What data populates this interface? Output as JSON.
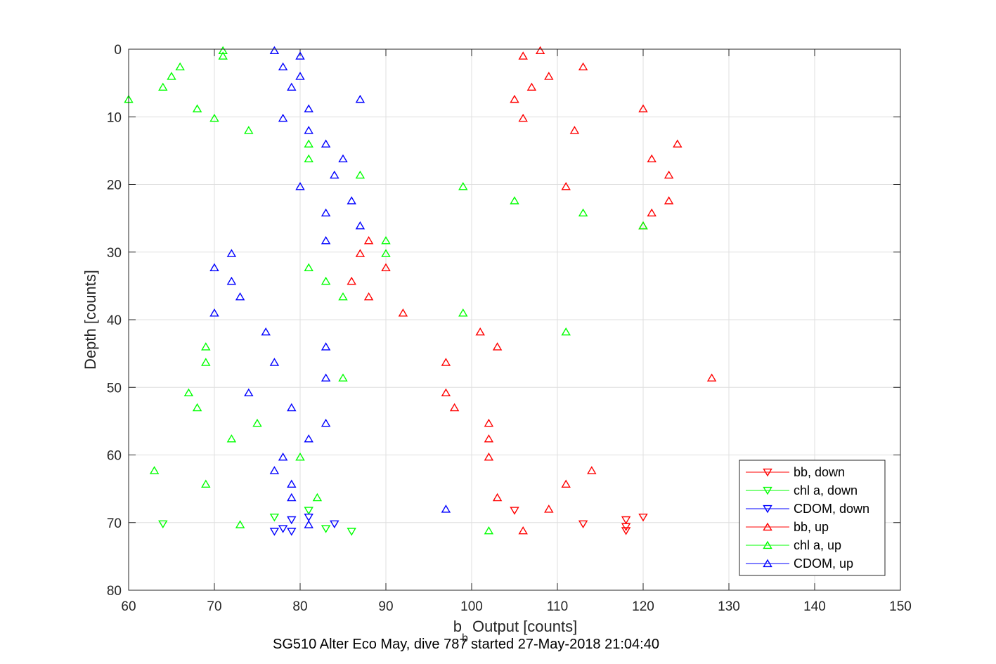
{
  "chart_data": {
    "type": "scatter",
    "xlabel_main": "b",
    "xlabel_sub": "b",
    "xlabel_rest": " Output [counts]",
    "ylabel": "Depth [counts]",
    "caption": "SG510 Alter Eco May, dive 787 started 27-May-2018 21:04:40",
    "xlim": [
      60,
      150
    ],
    "ylim": [
      0,
      80
    ],
    "y_reversed": true,
    "grid": true,
    "legend_position": "bottom-right",
    "x_ticks": [
      "60",
      "70",
      "80",
      "90",
      "100",
      "110",
      "120",
      "130",
      "140",
      "150"
    ],
    "y_ticks": [
      "0",
      "10",
      "20",
      "30",
      "40",
      "50",
      "60",
      "70",
      "80"
    ],
    "series": [
      {
        "name": "bb, down",
        "color": "#ff0000",
        "marker": "triangle-down",
        "points": [
          [
            120,
            69.2
          ],
          [
            105,
            68.2
          ],
          [
            113,
            70.2
          ],
          [
            118,
            69.6
          ],
          [
            118,
            70.6
          ],
          [
            118,
            71.2
          ]
        ]
      },
      {
        "name": "chl a, down",
        "color": "#00ff00",
        "marker": "triangle-down",
        "points": [
          [
            64,
            70.2
          ],
          [
            77,
            69.2
          ],
          [
            81,
            68.2
          ],
          [
            83,
            70.9
          ],
          [
            86,
            71.3
          ]
        ]
      },
      {
        "name": "CDOM, down",
        "color": "#0000ff",
        "marker": "triangle-down",
        "points": [
          [
            84,
            70.2
          ],
          [
            81,
            69.2
          ],
          [
            79,
            69.6
          ],
          [
            78,
            70.9
          ],
          [
            77,
            71.3
          ],
          [
            79,
            71.3
          ]
        ]
      },
      {
        "name": "bb, up",
        "color": "#ff0000",
        "marker": "triangle-up",
        "points": [
          [
            108,
            0.2
          ],
          [
            106,
            1.0
          ],
          [
            113,
            2.6
          ],
          [
            109,
            4.0
          ],
          [
            107,
            5.6
          ],
          [
            105,
            7.4
          ],
          [
            120,
            8.8
          ],
          [
            106,
            10.2
          ],
          [
            112,
            12.0
          ],
          [
            124,
            14.0
          ],
          [
            121,
            16.2
          ],
          [
            123,
            18.6
          ],
          [
            111,
            20.3
          ],
          [
            123,
            22.4
          ],
          [
            121,
            24.2
          ],
          [
            120,
            26.1
          ],
          [
            88,
            28.3
          ],
          [
            87,
            30.2
          ],
          [
            90,
            32.3
          ],
          [
            86,
            34.3
          ],
          [
            88,
            36.6
          ],
          [
            92,
            39.0
          ],
          [
            101,
            41.8
          ],
          [
            103,
            44.0
          ],
          [
            97,
            46.3
          ],
          [
            128,
            48.6
          ],
          [
            97,
            50.8
          ],
          [
            98,
            53.0
          ],
          [
            102,
            55.3
          ],
          [
            102,
            57.6
          ],
          [
            102,
            60.3
          ],
          [
            114,
            62.3
          ],
          [
            111,
            64.3
          ],
          [
            103,
            66.3
          ],
          [
            109,
            68.0
          ],
          [
            106,
            71.2
          ]
        ]
      },
      {
        "name": "chl a, up",
        "color": "#00ff00",
        "marker": "triangle-up",
        "points": [
          [
            71,
            0.2
          ],
          [
            71,
            1.0
          ],
          [
            66,
            2.6
          ],
          [
            65,
            4.0
          ],
          [
            64,
            5.6
          ],
          [
            60,
            7.4
          ],
          [
            68,
            8.8
          ],
          [
            70,
            10.2
          ],
          [
            74,
            12.0
          ],
          [
            81,
            14.0
          ],
          [
            81,
            16.2
          ],
          [
            87,
            18.6
          ],
          [
            99,
            20.3
          ],
          [
            105,
            22.4
          ],
          [
            113,
            24.2
          ],
          [
            120,
            26.1
          ],
          [
            90,
            28.3
          ],
          [
            90,
            30.2
          ],
          [
            81,
            32.3
          ],
          [
            83,
            34.3
          ],
          [
            85,
            36.6
          ],
          [
            99,
            39.0
          ],
          [
            111,
            41.8
          ],
          [
            69,
            44.0
          ],
          [
            69,
            46.3
          ],
          [
            85,
            48.6
          ],
          [
            67,
            50.8
          ],
          [
            68,
            53.0
          ],
          [
            75,
            55.3
          ],
          [
            72,
            57.6
          ],
          [
            80,
            60.3
          ],
          [
            63,
            62.3
          ],
          [
            69,
            64.3
          ],
          [
            82,
            66.3
          ],
          [
            73,
            70.3
          ],
          [
            102,
            71.2
          ]
        ]
      },
      {
        "name": "CDOM, up",
        "color": "#0000ff",
        "marker": "triangle-up",
        "points": [
          [
            77,
            0.2
          ],
          [
            80,
            1.0
          ],
          [
            78,
            2.6
          ],
          [
            80,
            4.0
          ],
          [
            79,
            5.6
          ],
          [
            87,
            7.4
          ],
          [
            81,
            8.8
          ],
          [
            78,
            10.2
          ],
          [
            81,
            12.0
          ],
          [
            83,
            14.0
          ],
          [
            85,
            16.2
          ],
          [
            84,
            18.6
          ],
          [
            80,
            20.3
          ],
          [
            86,
            22.4
          ],
          [
            83,
            24.2
          ],
          [
            87,
            26.1
          ],
          [
            83,
            28.3
          ],
          [
            72,
            30.2
          ],
          [
            70,
            32.3
          ],
          [
            72,
            34.3
          ],
          [
            73,
            36.6
          ],
          [
            70,
            39.0
          ],
          [
            76,
            41.8
          ],
          [
            83,
            44.0
          ],
          [
            77,
            46.3
          ],
          [
            83,
            48.6
          ],
          [
            74,
            50.8
          ],
          [
            79,
            53.0
          ],
          [
            83,
            55.3
          ],
          [
            81,
            57.6
          ],
          [
            78,
            60.3
          ],
          [
            77,
            62.3
          ],
          [
            79,
            64.3
          ],
          [
            79,
            66.3
          ],
          [
            97,
            68.0
          ],
          [
            81,
            70.3
          ]
        ]
      }
    ]
  }
}
